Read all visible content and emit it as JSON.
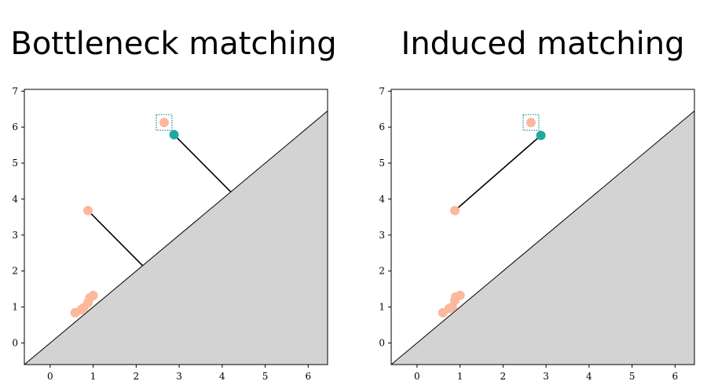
{
  "chart_data": [
    {
      "type": "scatter",
      "title": "Bottleneck matching",
      "xlabel": "",
      "ylabel": "",
      "xlim": [
        -0.6,
        6.45
      ],
      "ylim": [
        -0.6,
        7.05
      ],
      "x_ticks": [
        0,
        1,
        2,
        3,
        4,
        5,
        6
      ],
      "y_ticks": [
        0,
        1,
        2,
        3,
        4,
        5,
        6,
        7
      ],
      "diagonal_fill_color": "#d3d3d3",
      "series": [
        {
          "color": "#fbb89b",
          "points": [
            {
              "x": 0.58,
              "y": 0.84
            },
            {
              "x": 0.72,
              "y": 0.92
            },
            {
              "x": 0.78,
              "y": 0.98
            },
            {
              "x": 0.88,
              "y": 1.12
            },
            {
              "x": 0.92,
              "y": 1.25
            },
            {
              "x": 1.0,
              "y": 1.32
            },
            {
              "x": 0.88,
              "y": 3.68
            },
            {
              "x": 2.65,
              "y": 6.13
            }
          ]
        },
        {
          "color": "#20a9a3",
          "points": [
            {
              "x": 2.88,
              "y": 5.79
            }
          ]
        }
      ],
      "matching_lines": [
        {
          "from": {
            "x": 0.88,
            "y": 3.68
          },
          "to": {
            "x": 2.15,
            "y": 2.15
          }
        },
        {
          "from": {
            "x": 2.88,
            "y": 5.79
          },
          "to": {
            "x": 4.2,
            "y": 4.2
          }
        }
      ],
      "highlight_box": {
        "x": 2.65,
        "y": 6.13,
        "color": "#1e8c8c",
        "style": "dotted"
      }
    },
    {
      "type": "scatter",
      "title": "Induced matching",
      "xlabel": "",
      "ylabel": "",
      "xlim": [
        -0.6,
        6.45
      ],
      "ylim": [
        -0.6,
        7.05
      ],
      "x_ticks": [
        0,
        1,
        2,
        3,
        4,
        5,
        6
      ],
      "y_ticks": [
        0,
        1,
        2,
        3,
        4,
        5,
        6,
        7
      ],
      "diagonal_fill_color": "#d3d3d3",
      "series": [
        {
          "color": "#fbb89b",
          "points": [
            {
              "x": 0.6,
              "y": 0.84
            },
            {
              "x": 0.75,
              "y": 0.96
            },
            {
              "x": 0.82,
              "y": 1.0
            },
            {
              "x": 0.88,
              "y": 1.18
            },
            {
              "x": 0.9,
              "y": 1.28
            },
            {
              "x": 1.0,
              "y": 1.32
            },
            {
              "x": 0.88,
              "y": 3.68
            },
            {
              "x": 2.65,
              "y": 6.13
            }
          ]
        },
        {
          "color": "#20a9a3",
          "points": [
            {
              "x": 2.88,
              "y": 5.77
            }
          ]
        }
      ],
      "matching_lines": [
        {
          "from": {
            "x": 0.88,
            "y": 3.68
          },
          "to": {
            "x": 2.88,
            "y": 5.77
          }
        }
      ],
      "highlight_box": {
        "x": 2.65,
        "y": 6.13,
        "color": "#1e8c8c",
        "style": "dotted"
      }
    }
  ]
}
